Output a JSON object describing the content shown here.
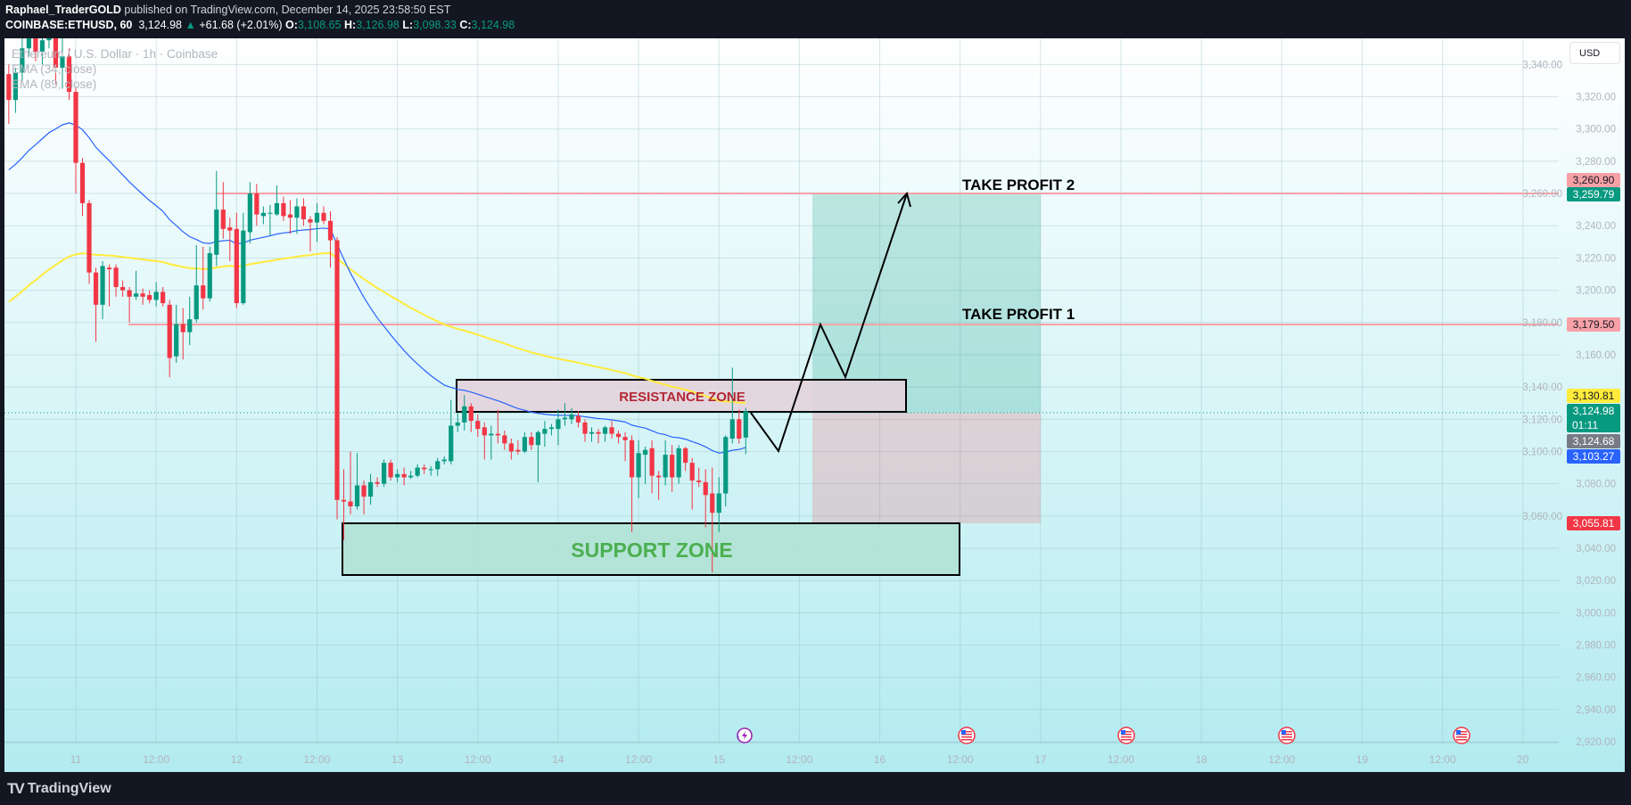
{
  "header": {
    "author": "Raphael_TraderGOLD",
    "published": "published on TradingView.com, December 14, 2025 23:58:50 EST",
    "symbol": "COINBASE:ETHUSD, 60",
    "last": "3,124.98",
    "change": "+61.68 (+2.01%)",
    "o_label": "O:",
    "o": "3,108.65",
    "h_label": "H:",
    "h": "3,126.98",
    "l_label": "L:",
    "l": "3,098.33",
    "c_label": "C:",
    "c": "3,124.98",
    "up_icon": "triangle-up-icon"
  },
  "legend": {
    "title": "Ethereum / U.S. Dollar · 1h · Coinbase",
    "ema1": "EMA (34, close)",
    "ema2": "EMA (89, close)"
  },
  "currency_button": "USD",
  "colors": {
    "up": "#089981",
    "down": "#f23645",
    "ema34": "#2962ff",
    "ema89": "#ffeb3b",
    "target": "#f7a1a7"
  },
  "price_badges": [
    {
      "label": "3,260.90",
      "bg": "#f7a1a7",
      "fg": "#131722"
    },
    {
      "label": "3,259.79",
      "bg": "#089981",
      "fg": "#ffffff"
    },
    {
      "label": "3,179.50",
      "bg": "#f7a1a7",
      "fg": "#131722"
    },
    {
      "label": "3,130.81",
      "bg": "#ffeb3b",
      "fg": "#131722"
    },
    {
      "label": "3,124.98",
      "sub": "01:11",
      "bg": "#089981",
      "fg": "#ffffff"
    },
    {
      "label": "3,124.68",
      "bg": "#787b86",
      "fg": "#ffffff"
    },
    {
      "label": "3,103.27",
      "bg": "#2962ff",
      "fg": "#ffffff"
    },
    {
      "label": "3,055.81",
      "bg": "#f23645",
      "fg": "#ffffff"
    }
  ],
  "annotations": {
    "tp2": "TAKE PROFIT 2",
    "tp1": "TAKE PROFIT 1",
    "resistance": "RESISTANCE ZONE",
    "support": "SUPPORT ZONE"
  },
  "event_icons": [
    "lightning-event-icon",
    "us-flag-icon",
    "us-flag-icon",
    "us-flag-icon",
    "us-flag-icon"
  ],
  "footer": {
    "brand": "TradingView"
  },
  "chart_data": {
    "type": "candlestick",
    "interval": "1h",
    "start": "2025-12-10T14:00",
    "ylim": [
      2910,
      3356
    ],
    "grid": true,
    "y_ticks": [
      "3,340.00",
      "3,320.00",
      "3,300.00",
      "3,280.00",
      "3,260.00",
      "3,240.00",
      "3,220.00",
      "3,200.00",
      "3,180.00",
      "3,160.00",
      "3,140.00",
      "3,120.00",
      "3,100.00",
      "3,080.00",
      "3,060.00",
      "3,040.00",
      "3,020.00",
      "3,000.00",
      "2,980.00",
      "2,960.00",
      "2,940.00",
      "2,920.00"
    ],
    "x_ticks": [
      "11",
      "12:00",
      "12",
      "12:00",
      "13",
      "12:00",
      "14",
      "12:00",
      "15",
      "12:00",
      "16",
      "12:00",
      "17",
      "12:00",
      "18",
      "12:00",
      "19",
      "12:00",
      "20"
    ],
    "levels": {
      "take_profit_2": 3260.9,
      "take_profit_1": 3179.5,
      "last": 3124.98
    },
    "resistance_zone": [
      3124.6,
      3144.5
    ],
    "support_zone": [
      3023.6,
      3055.6
    ],
    "position": {
      "entry": 3124.98,
      "target": 3259.79,
      "stop": 3055.81
    },
    "ohlc": [
      [
        3334,
        3340,
        3303,
        3318
      ],
      [
        3318,
        3338,
        3310,
        3335
      ],
      [
        3335,
        3365,
        3330,
        3350
      ],
      [
        3350,
        3370,
        3345,
        3362
      ],
      [
        3362,
        3368,
        3342,
        3348
      ],
      [
        3348,
        3362,
        3340,
        3355
      ],
      [
        3355,
        3372,
        3350,
        3360
      ],
      [
        3360,
        3366,
        3328,
        3338
      ],
      [
        3338,
        3358,
        3325,
        3345
      ],
      [
        3345,
        3350,
        3318,
        3323
      ],
      [
        3323,
        3326,
        3260,
        3279
      ],
      [
        3279,
        3282,
        3246,
        3254
      ],
      [
        3254,
        3256,
        3204,
        3211
      ],
      [
        3211,
        3214,
        3168,
        3191
      ],
      [
        3191,
        3218,
        3182,
        3215
      ],
      [
        3214,
        3216,
        3190,
        3213
      ],
      [
        3214,
        3216,
        3196,
        3202
      ],
      [
        3202,
        3206,
        3196,
        3200
      ],
      [
        3200,
        3202,
        3180,
        3196
      ],
      [
        3196,
        3212,
        3194,
        3198
      ],
      [
        3198,
        3201,
        3191,
        3196
      ],
      [
        3197,
        3200,
        3192,
        3194
      ],
      [
        3194,
        3205,
        3190,
        3199
      ],
      [
        3199,
        3202,
        3190,
        3192
      ],
      [
        3191,
        3194,
        3146,
        3158
      ],
      [
        3159,
        3191,
        3155,
        3179
      ],
      [
        3179,
        3189,
        3157,
        3174
      ],
      [
        3174,
        3196,
        3166,
        3182
      ],
      [
        3182,
        3228,
        3180,
        3203
      ],
      [
        3203,
        3227,
        3188,
        3195
      ],
      [
        3195,
        3227,
        3193,
        3223
      ],
      [
        3222,
        3274,
        3215,
        3250
      ],
      [
        3250,
        3267,
        3232,
        3238
      ],
      [
        3239,
        3245,
        3218,
        3237
      ],
      [
        3238,
        3248,
        3189,
        3192
      ],
      [
        3192,
        3248,
        3191,
        3237
      ],
      [
        3236,
        3267,
        3229,
        3260
      ],
      [
        3260,
        3266,
        3240,
        3247
      ],
      [
        3246,
        3252,
        3241,
        3248
      ],
      [
        3248,
        3253,
        3234,
        3248
      ],
      [
        3247,
        3265,
        3246,
        3254
      ],
      [
        3254,
        3258,
        3243,
        3246
      ],
      [
        3247,
        3256,
        3235,
        3245
      ],
      [
        3245,
        3257,
        3235,
        3252
      ],
      [
        3252,
        3257,
        3240,
        3244
      ],
      [
        3244,
        3246,
        3224,
        3242
      ],
      [
        3242,
        3254,
        3230,
        3248
      ],
      [
        3248,
        3252,
        3241,
        3243
      ],
      [
        3243,
        3249,
        3214,
        3231
      ],
      [
        3231,
        3233,
        3058,
        3070
      ],
      [
        3070,
        3089,
        3045,
        3069
      ],
      [
        3069,
        3100,
        3061,
        3066
      ],
      [
        3066,
        3099,
        3064,
        3079
      ],
      [
        3079,
        3082,
        3061,
        3072
      ],
      [
        3072,
        3086,
        3067,
        3081
      ],
      [
        3081,
        3084,
        3078,
        3080
      ],
      [
        3080,
        3095,
        3078,
        3093
      ],
      [
        3093,
        3095,
        3082,
        3084
      ],
      [
        3084,
        3089,
        3081,
        3086
      ],
      [
        3086,
        3090,
        3079,
        3084
      ],
      [
        3084,
        3088,
        3083,
        3085
      ],
      [
        3085,
        3092,
        3084,
        3090
      ],
      [
        3090,
        3092,
        3086,
        3089
      ],
      [
        3089,
        3091,
        3085,
        3089
      ],
      [
        3089,
        3096,
        3085,
        3094
      ],
      [
        3094,
        3097,
        3092,
        3095
      ],
      [
        3094,
        3132,
        3092,
        3116
      ],
      [
        3116,
        3124,
        3112,
        3118
      ],
      [
        3118,
        3135,
        3113,
        3128
      ],
      [
        3128,
        3130,
        3112,
        3119
      ],
      [
        3119,
        3123,
        3109,
        3114
      ],
      [
        3115,
        3118,
        3095,
        3110
      ],
      [
        3110,
        3116,
        3095,
        3111
      ],
      [
        3111,
        3126,
        3105,
        3110
      ],
      [
        3110,
        3113,
        3101,
        3105
      ],
      [
        3105,
        3108,
        3095,
        3100
      ],
      [
        3101,
        3107,
        3098,
        3100
      ],
      [
        3100,
        3112,
        3099,
        3109
      ],
      [
        3109,
        3112,
        3101,
        3104
      ],
      [
        3104,
        3113,
        3081,
        3112
      ],
      [
        3111,
        3119,
        3103,
        3114
      ],
      [
        3114,
        3117,
        3110,
        3115
      ],
      [
        3114,
        3126,
        3104,
        3120
      ],
      [
        3120,
        3130,
        3116,
        3121
      ],
      [
        3120,
        3127,
        3117,
        3123
      ],
      [
        3122,
        3125,
        3115,
        3118
      ],
      [
        3118,
        3120,
        3106,
        3111
      ],
      [
        3111,
        3115,
        3106,
        3112
      ],
      [
        3112,
        3114,
        3105,
        3111
      ],
      [
        3111,
        3116,
        3106,
        3115
      ],
      [
        3115,
        3119,
        3108,
        3111
      ],
      [
        3111,
        3113,
        3105,
        3109
      ],
      [
        3109,
        3112,
        3094,
        3107
      ],
      [
        3107,
        3110,
        3050,
        3084
      ],
      [
        3084,
        3107,
        3071,
        3099
      ],
      [
        3098,
        3103,
        3080,
        3101
      ],
      [
        3102,
        3107,
        3074,
        3085
      ],
      [
        3085,
        3088,
        3070,
        3084
      ],
      [
        3084,
        3107,
        3079,
        3098
      ],
      [
        3098,
        3104,
        3075,
        3084
      ],
      [
        3084,
        3104,
        3080,
        3102
      ],
      [
        3102,
        3103,
        3088,
        3093
      ],
      [
        3093,
        3096,
        3064,
        3082
      ],
      [
        3082,
        3090,
        3078,
        3081
      ],
      [
        3081,
        3089,
        3053,
        3073
      ],
      [
        3074,
        3090,
        3025,
        3062
      ],
      [
        3062,
        3084,
        3050,
        3074
      ],
      [
        3074,
        3110,
        3066,
        3109
      ],
      [
        3108,
        3152,
        3105,
        3120
      ],
      [
        3120,
        3126,
        3105,
        3108
      ],
      [
        3108.65,
        3126.98,
        3098.33,
        3124.98
      ]
    ]
  }
}
